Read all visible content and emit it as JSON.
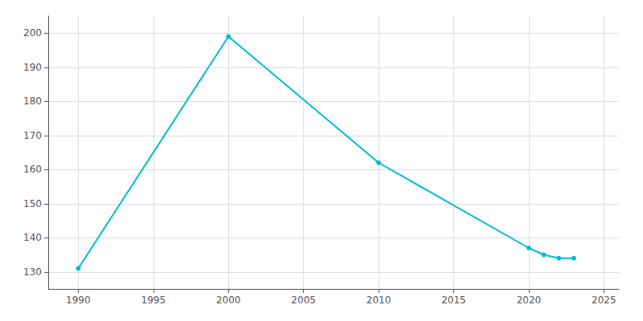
{
  "chart_data": {
    "type": "line",
    "x": [
      1990,
      2000,
      2010,
      2020,
      2021,
      2022,
      2023
    ],
    "values": [
      131,
      199,
      162,
      137,
      135,
      134,
      134
    ],
    "color": "#00bcd4",
    "marker": "circle",
    "xlim": [
      1988,
      2026
    ],
    "xticks": [
      1990,
      1995,
      2000,
      2005,
      2010,
      2015,
      2020,
      2025
    ],
    "ylim": [
      125,
      205
    ],
    "yticks": [
      130,
      140,
      150,
      160,
      170,
      180,
      190,
      200
    ],
    "grid": true
  }
}
